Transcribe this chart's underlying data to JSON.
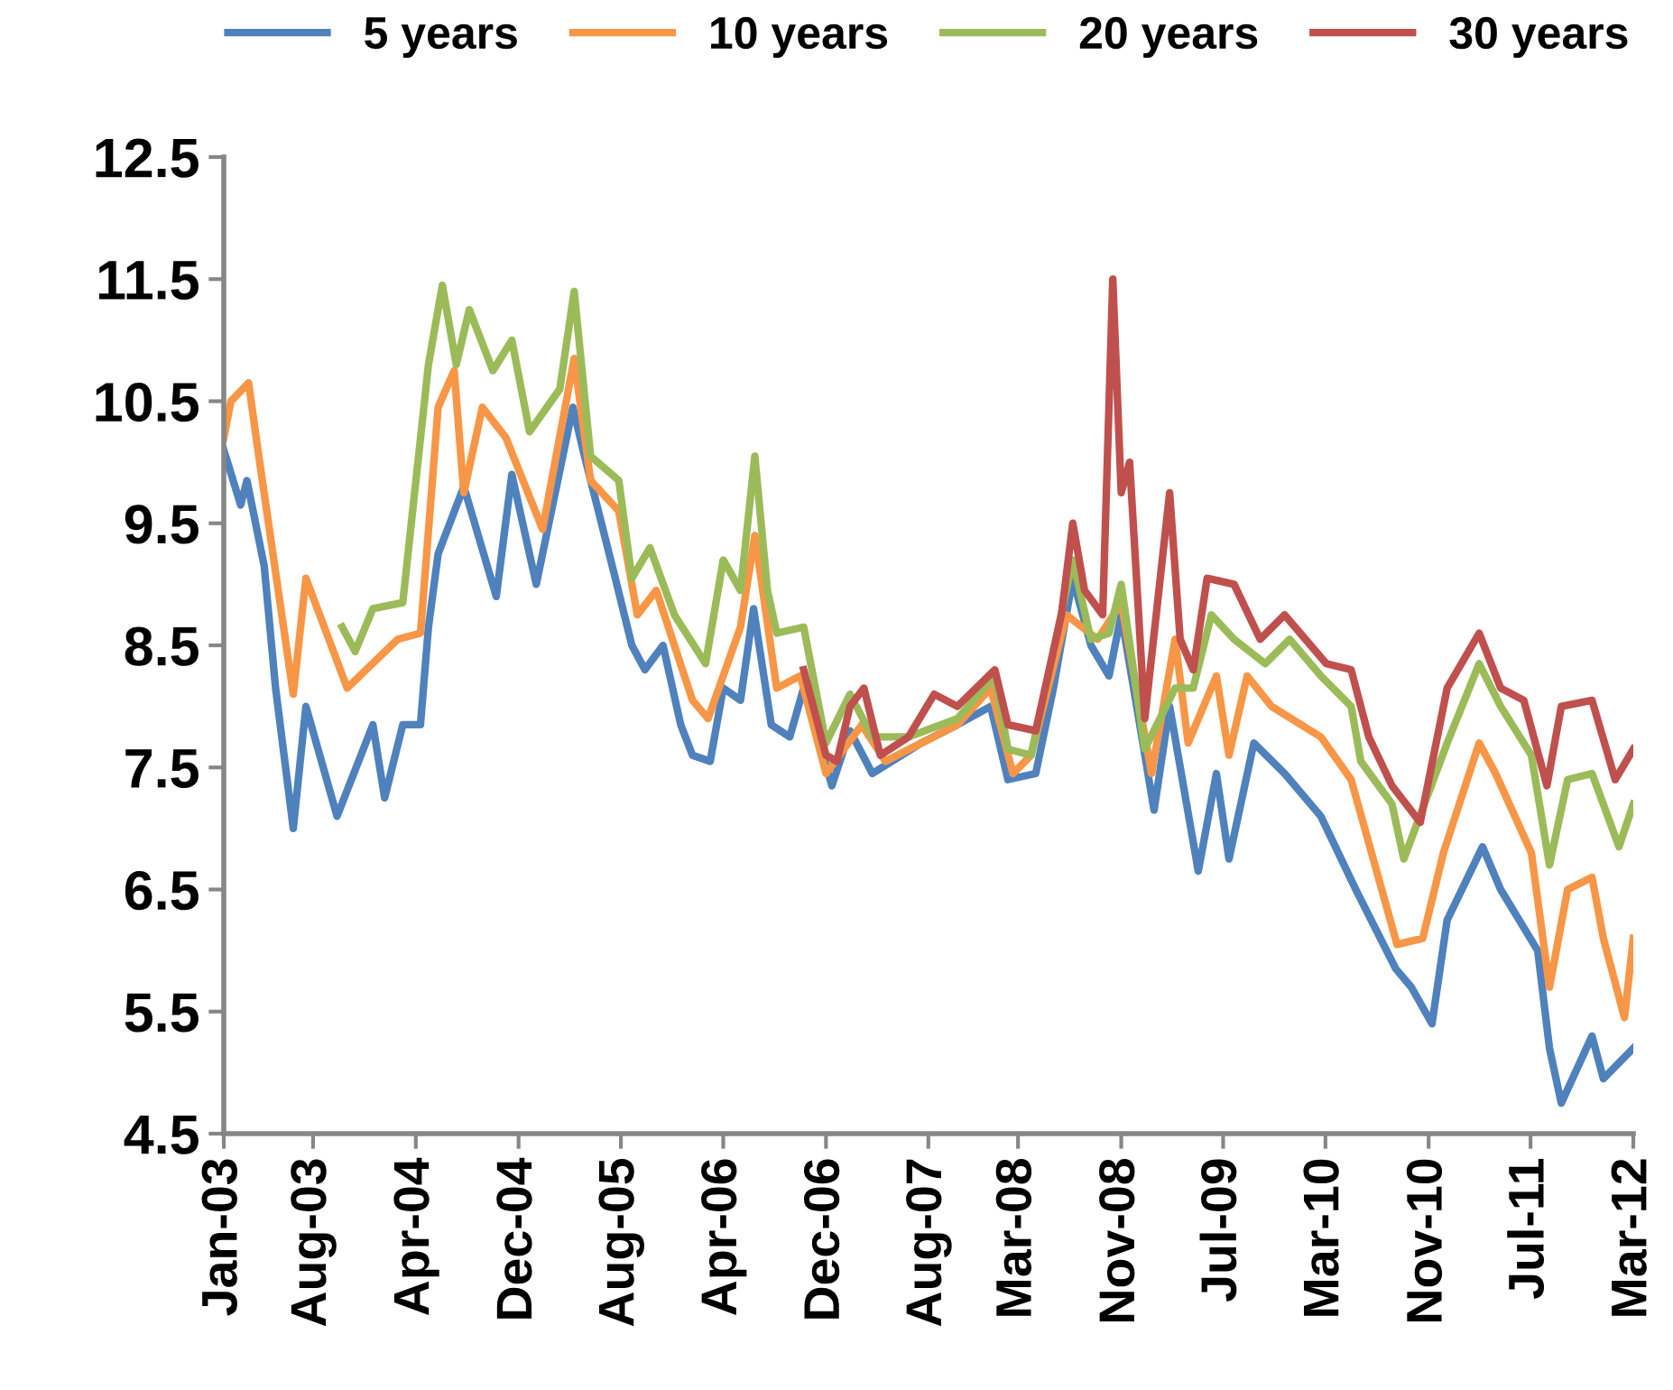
{
  "chart_data": {
    "type": "line",
    "legend": "top",
    "grid": false,
    "marker": "none",
    "line_style": "solid",
    "xlim": [
      "2003-01-01",
      "2012-03-01"
    ],
    "xticks": [
      {
        "value": "2003-01-01",
        "label": "Jan-03"
      },
      {
        "value": "2003-08-01",
        "label": "Aug-03"
      },
      {
        "value": "2004-04-01",
        "label": "Apr-04"
      },
      {
        "value": "2004-12-01",
        "label": "Dec-04"
      },
      {
        "value": "2005-08-01",
        "label": "Aug-05"
      },
      {
        "value": "2006-04-01",
        "label": "Apr-06"
      },
      {
        "value": "2006-12-01",
        "label": "Dec-06"
      },
      {
        "value": "2007-08-01",
        "label": "Aug-07"
      },
      {
        "value": "2008-03-01",
        "label": "Mar-08"
      },
      {
        "value": "2008-11-01",
        "label": "Nov-08"
      },
      {
        "value": "2009-07-01",
        "label": "Jul-09"
      },
      {
        "value": "2010-03-01",
        "label": "Mar-10"
      },
      {
        "value": "2010-11-01",
        "label": "Nov-10"
      },
      {
        "value": "2011-07-01",
        "label": "Jul-11"
      },
      {
        "value": "2012-03-01",
        "label": "Mar-12"
      }
    ],
    "ylim": [
      4.5,
      12.5
    ],
    "yticks": [
      4.5,
      5.5,
      6.5,
      7.5,
      8.5,
      9.5,
      10.5,
      11.5,
      12.5
    ],
    "series": [
      {
        "name": "5 years",
        "color": "#4f81bd",
        "x": [
          "2003-01-01",
          "2003-02-10",
          "2003-02-25",
          "2003-04-07",
          "2003-05-04",
          "2003-06-15",
          "2003-07-15",
          "2003-09-27",
          "2003-12-21",
          "2004-01-18",
          "2004-03-01",
          "2004-04-12",
          "2004-05-01",
          "2004-05-24",
          "2004-07-24",
          "2004-10-09",
          "2004-11-15",
          "2005-01-12",
          "2005-04-09",
          "2005-05-03",
          "2005-07-15",
          "2005-08-27",
          "2005-09-27",
          "2005-11-09",
          "2005-12-21",
          "2006-01-18",
          "2006-03-01",
          "2006-04-01",
          "2006-05-12",
          "2006-06-12",
          "2006-07-24",
          "2006-09-06",
          "2006-10-09",
          "2006-12-15",
          "2007-01-27",
          "2007-03-21",
          "2007-07-15",
          "2007-10-09",
          "2007-12-27",
          "2008-02-06",
          "2008-04-12",
          "2008-05-24",
          "2008-07-09",
          "2008-08-21",
          "2008-10-03",
          "2008-11-01",
          "2008-12-15",
          "2009-01-18",
          "2009-02-24",
          "2009-05-03",
          "2009-06-15",
          "2009-07-15",
          "2009-09-12",
          "2009-11-24",
          "2010-02-18",
          "2010-05-12",
          "2010-08-15",
          "2010-09-21",
          "2010-11-09",
          "2010-12-15",
          "2011-03-09",
          "2011-04-21",
          "2011-07-18",
          "2011-08-15",
          "2011-09-12",
          "2011-11-24",
          "2011-12-21",
          "2012-03-01"
        ],
        "values": [
          10.1,
          9.65,
          9.85,
          9.15,
          8.15,
          7.0,
          8.0,
          7.1,
          7.85,
          7.25,
          7.85,
          7.85,
          8.65,
          9.25,
          9.8,
          8.9,
          9.9,
          9.0,
          10.45,
          10.1,
          9.1,
          8.5,
          8.3,
          8.5,
          7.85,
          7.6,
          7.55,
          8.15,
          8.05,
          8.8,
          7.85,
          7.75,
          8.15,
          7.35,
          7.8,
          7.45,
          7.7,
          7.85,
          8.0,
          7.4,
          7.45,
          8.15,
          9.05,
          8.5,
          8.25,
          8.75,
          7.85,
          7.15,
          8.0,
          6.65,
          7.45,
          6.75,
          7.7,
          7.45,
          7.1,
          6.5,
          5.85,
          5.7,
          5.4,
          6.25,
          6.85,
          6.5,
          6.0,
          5.2,
          4.75,
          5.3,
          4.95,
          5.2
        ]
      },
      {
        "name": "10 years",
        "color": "#f79646",
        "x": [
          "2003-01-01",
          "2003-01-18",
          "2003-03-01",
          "2003-03-21",
          "2003-05-04",
          "2003-06-15",
          "2003-07-15",
          "2003-10-21",
          "2004-02-18",
          "2004-04-12",
          "2004-05-24",
          "2004-07-01",
          "2004-07-24",
          "2004-09-06",
          "2004-11-01",
          "2005-01-27",
          "2005-04-12",
          "2005-05-21",
          "2005-07-27",
          "2005-09-09",
          "2005-10-24",
          "2006-01-18",
          "2006-02-24",
          "2006-05-12",
          "2006-06-15",
          "2006-08-06",
          "2006-10-01",
          "2006-12-01",
          "2007-02-24",
          "2007-04-21",
          "2007-10-09",
          "2007-12-27",
          "2008-02-18",
          "2008-04-01",
          "2008-06-24",
          "2008-09-06",
          "2008-11-01",
          "2009-01-12",
          "2009-03-09",
          "2009-04-09",
          "2009-06-15",
          "2009-07-15",
          "2009-08-27",
          "2009-10-24",
          "2010-02-18",
          "2010-05-01",
          "2010-08-18",
          "2010-10-18",
          "2010-12-06",
          "2011-03-01",
          "2011-04-09",
          "2011-07-03",
          "2011-08-15",
          "2011-09-27",
          "2011-11-24",
          "2011-12-21",
          "2012-02-09",
          "2012-03-01"
        ],
        "values": [
          10.2,
          10.5,
          10.65,
          10.15,
          9.1,
          8.1,
          9.05,
          8.15,
          8.55,
          8.6,
          10.45,
          10.75,
          9.75,
          10.45,
          10.2,
          9.45,
          10.85,
          9.85,
          9.6,
          8.75,
          8.95,
          8.05,
          7.9,
          8.65,
          9.4,
          8.15,
          8.25,
          7.45,
          7.85,
          7.55,
          7.85,
          8.15,
          7.45,
          7.6,
          8.75,
          8.55,
          8.85,
          7.45,
          8.55,
          7.7,
          8.25,
          7.6,
          8.25,
          8.0,
          7.75,
          7.4,
          6.05,
          6.1,
          6.8,
          7.7,
          7.45,
          6.8,
          5.7,
          6.5,
          6.6,
          6.1,
          5.45,
          6.1
        ]
      },
      {
        "name": "20 years",
        "color": "#9bbb59",
        "x": [
          "2003-10-09",
          "2003-11-09",
          "2003-12-21",
          "2004-03-01",
          "2004-03-15",
          "2004-05-01",
          "2004-06-03",
          "2004-07-06",
          "2004-08-06",
          "2004-10-01",
          "2004-11-15",
          "2004-12-27",
          "2005-03-09",
          "2005-04-12",
          "2005-05-21",
          "2005-07-27",
          "2005-08-27",
          "2005-10-09",
          "2005-12-06",
          "2006-02-18",
          "2006-04-01",
          "2006-05-12",
          "2006-06-15",
          "2006-07-15",
          "2006-08-06",
          "2006-10-09",
          "2006-12-01",
          "2007-01-27",
          "2007-03-21",
          "2007-06-15",
          "2007-10-09",
          "2008-01-06",
          "2008-02-06",
          "2008-04-01",
          "2008-07-09",
          "2008-08-21",
          "2008-10-03",
          "2008-11-01",
          "2008-12-27",
          "2009-03-09",
          "2009-04-21",
          "2009-06-03",
          "2009-07-27",
          "2009-10-09",
          "2009-12-06",
          "2010-02-18",
          "2010-05-01",
          "2010-05-24",
          "2010-08-06",
          "2010-09-03",
          "2010-12-15",
          "2011-03-01",
          "2011-04-21",
          "2011-07-03",
          "2011-08-15",
          "2011-09-27",
          "2011-11-24",
          "2012-01-27",
          "2012-03-01"
        ],
        "values": [
          8.65,
          8.45,
          8.8,
          8.85,
          9.3,
          10.8,
          11.45,
          10.8,
          11.25,
          10.75,
          11.0,
          10.25,
          10.6,
          11.4,
          10.05,
          9.85,
          9.05,
          9.3,
          8.75,
          8.35,
          9.2,
          8.95,
          10.05,
          8.95,
          8.6,
          8.65,
          7.7,
          8.1,
          7.75,
          7.75,
          7.9,
          8.25,
          7.65,
          7.6,
          9.2,
          8.55,
          8.6,
          9.0,
          7.65,
          8.15,
          8.15,
          8.75,
          8.55,
          8.35,
          8.55,
          8.25,
          8.0,
          7.55,
          7.2,
          6.75,
          7.7,
          8.35,
          8.0,
          7.6,
          6.7,
          7.4,
          7.45,
          6.85,
          7.2
        ]
      },
      {
        "name": "30 years",
        "color": "#c0504d",
        "x": [
          "2006-10-09",
          "2006-12-01",
          "2006-12-27",
          "2007-01-27",
          "2007-03-01",
          "2007-04-09",
          "2007-06-15",
          "2007-08-15",
          "2007-10-09",
          "2008-01-06",
          "2008-02-06",
          "2008-04-12",
          "2008-06-12",
          "2008-07-09",
          "2008-08-06",
          "2008-09-18",
          "2008-10-12",
          "2008-11-01",
          "2008-11-21",
          "2008-12-27",
          "2009-02-24",
          "2009-03-21",
          "2009-04-21",
          "2009-05-24",
          "2009-07-27",
          "2009-09-27",
          "2009-11-24",
          "2010-03-03",
          "2010-05-01",
          "2010-06-12",
          "2010-08-06",
          "2010-10-12",
          "2010-12-15",
          "2011-03-01",
          "2011-04-21",
          "2011-06-15",
          "2011-08-09",
          "2011-09-12",
          "2011-11-24",
          "2012-01-18",
          "2012-03-01"
        ],
        "values": [
          8.3,
          7.6,
          7.55,
          8.0,
          8.15,
          7.6,
          7.75,
          8.1,
          8.0,
          8.3,
          7.85,
          7.8,
          8.75,
          9.5,
          8.95,
          8.75,
          11.5,
          9.75,
          10.0,
          7.9,
          9.75,
          8.55,
          8.3,
          9.05,
          9.0,
          8.55,
          8.75,
          8.35,
          8.3,
          7.75,
          7.35,
          7.05,
          8.15,
          8.6,
          8.15,
          8.05,
          7.35,
          8.0,
          8.05,
          7.4,
          7.65
        ]
      }
    ]
  }
}
